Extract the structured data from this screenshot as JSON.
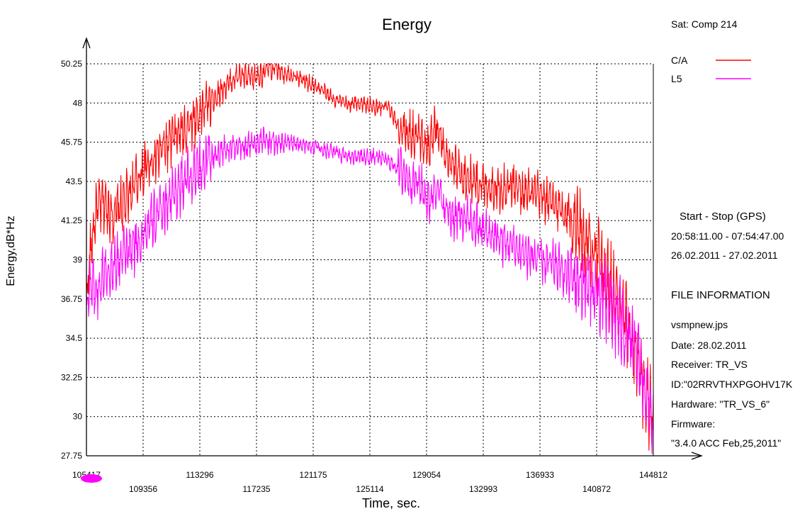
{
  "chart_data": {
    "type": "line",
    "title": "Energy",
    "xlabel": "Time, sec.",
    "ylabel": "Energy,dB*Hz",
    "xlim": [
      105417,
      144812
    ],
    "ylim": [
      27.75,
      50.25
    ],
    "grid": true,
    "legend_position": "top-right",
    "y_ticks": [
      "27.75",
      "30",
      "32.25",
      "34.5",
      "36.75",
      "39",
      "41.25",
      "43.5",
      "45.75",
      "48",
      "50.25"
    ],
    "x_ticks": [
      "105417",
      "109356",
      "113296",
      "117235",
      "121175",
      "125114",
      "129054",
      "132993",
      "136933",
      "140872",
      "144812"
    ],
    "series": [
      {
        "name": "C/A",
        "color": "#ff0000",
        "x": [
          105417,
          105700,
          106100,
          106600,
          107300,
          108100,
          109000,
          110000,
          111000,
          112000,
          113000,
          114000,
          115000,
          116000,
          117000,
          118000,
          118600,
          119500,
          120500,
          121500,
          122500,
          123500,
          124500,
          125500,
          126300,
          127200,
          128000,
          128700,
          129200,
          129700,
          130300,
          131000,
          132000,
          133000,
          134000,
          135000,
          136000,
          137000,
          138000,
          139000,
          140000,
          140800,
          141500,
          142100,
          142700,
          143300,
          143800,
          144300,
          144812
        ],
        "values": [
          36.6,
          39.5,
          41.8,
          42.3,
          41.6,
          42.3,
          43.6,
          44.8,
          45.6,
          46.3,
          47.2,
          48.1,
          48.9,
          49.6,
          49.4,
          49.9,
          50.0,
          49.7,
          49.3,
          48.9,
          48.3,
          47.9,
          48.0,
          47.7,
          47.8,
          46.5,
          46.2,
          46.0,
          45.5,
          46.7,
          45.3,
          44.2,
          43.6,
          43.3,
          43.1,
          43.3,
          42.8,
          42.6,
          42.1,
          41.6,
          40.4,
          39.2,
          38.1,
          37.1,
          35.8,
          34.3,
          32.8,
          31.2,
          30.0
        ]
      },
      {
        "name": "L5",
        "color": "#ff00ff",
        "x": [
          105417,
          105700,
          106100,
          106600,
          107300,
          108100,
          109000,
          110000,
          111000,
          112000,
          113000,
          114000,
          115000,
          116000,
          117000,
          118000,
          118600,
          119500,
          120500,
          121500,
          122500,
          123500,
          124500,
          125500,
          126300,
          127200,
          128000,
          128700,
          129200,
          129700,
          130300,
          131000,
          132000,
          133000,
          134000,
          135000,
          136000,
          137000,
          138000,
          139000,
          140000,
          140800,
          141500,
          142100,
          142700,
          143300,
          143800,
          144300,
          144812
        ],
        "values": [
          36.3,
          37.8,
          37.0,
          38.2,
          38.7,
          39.3,
          40.0,
          41.2,
          42.3,
          43.3,
          44.1,
          44.8,
          45.3,
          45.5,
          45.7,
          45.8,
          45.7,
          45.8,
          45.6,
          45.5,
          45.2,
          45.0,
          44.9,
          44.9,
          44.7,
          44.2,
          43.6,
          43.2,
          42.2,
          43.4,
          41.9,
          41.5,
          41.2,
          40.7,
          40.2,
          39.8,
          39.3,
          39.0,
          38.6,
          38.1,
          37.6,
          37.1,
          36.6,
          36.0,
          35.2,
          34.2,
          33.1,
          31.6,
          29.5
        ]
      }
    ]
  },
  "info": {
    "sat": "Sat: Comp  214",
    "time_header": "Start  -  Stop  (GPS)",
    "time_range": "20:58:11.00 - 07:54:47.00",
    "date_range": "26.02.2011 - 27.02.2011",
    "file_header": "FILE INFORMATION",
    "file_name": "vsmpnew.jps",
    "date": "Date: 28.02.2011",
    "receiver": "Receiver: TR_VS",
    "id": "ID:\"02RRVTHXPGOHV17K",
    "hardware": "Hardware: \"TR_VS_6\"",
    "firmware_label": "Firmware:",
    "firmware_value": "\"3.4.0 ACC Feb,25,2011\""
  }
}
